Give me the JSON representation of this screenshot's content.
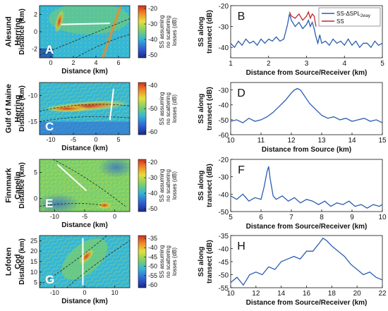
{
  "colors": {
    "blue_line": "#2a5db0",
    "red_line": "#c0262b",
    "transect": "#ffffff",
    "contour": "#222222",
    "colormap": [
      "#1b2a8c",
      "#2f63d6",
      "#35b7d6",
      "#7ccf6a",
      "#e3e03a",
      "#f28a24",
      "#d1301e"
    ]
  },
  "rows": [
    {
      "id": "A",
      "region": [
        "Alesund",
        "Herring"
      ],
      "map": {
        "letter": "A",
        "xlabel": "Distance (km)",
        "ylabel": "Distance (km)",
        "xticks": [
          "0",
          "2",
          "4",
          "6"
        ],
        "yticks": [
          "2",
          "0",
          "-2"
        ],
        "colorbar": {
          "ticks": [
            "-20",
            "-30",
            "-40",
            "-50"
          ],
          "label": [
            "SS assuming",
            "no scattering",
            "losses (dB)"
          ]
        }
      },
      "chart_data": {
        "type": "line",
        "panel": "B",
        "xlabel": "Distance from Source/Receiver (km)",
        "ylabel": [
          "SS along",
          "transect (dB)"
        ],
        "xlim": [
          1,
          5
        ],
        "ylim": [
          -45,
          -20
        ],
        "xticks": [
          1,
          2,
          3,
          4,
          5
        ],
        "yticks": [
          -20,
          -30,
          -40
        ],
        "legend": {
          "position": "top-right",
          "entries": [
            "SS-ΔSPL",
            "SS"
          ],
          "subscript": "2way"
        },
        "series": [
          {
            "name": "SS-ΔSPL2way",
            "x": [
              1.0,
              1.1,
              1.2,
              1.3,
              1.4,
              1.5,
              1.6,
              1.7,
              1.8,
              1.9,
              2.0,
              2.1,
              2.2,
              2.3,
              2.4,
              2.5,
              2.55,
              2.6,
              2.7,
              2.8,
              2.9,
              3.0,
              3.05,
              3.1,
              3.15,
              3.2,
              3.25,
              3.3,
              3.35,
              3.4,
              3.5,
              3.6,
              3.7,
              3.8,
              3.9,
              4.0,
              4.1,
              4.2,
              4.3,
              4.4,
              4.5,
              4.6,
              4.7,
              4.8,
              4.9,
              5.0
            ],
            "y": [
              -38,
              -40,
              -37,
              -39,
              -36,
              -38,
              -37,
              -39,
              -36,
              -38,
              -36,
              -37,
              -35,
              -37,
              -36,
              -29,
              -24,
              -27,
              -30,
              -28,
              -31,
              -29,
              -27,
              -30,
              -28,
              -31,
              -35,
              -38,
              -34,
              -38,
              -37,
              -39,
              -36,
              -38,
              -37,
              -39,
              -36,
              -39,
              -37,
              -40,
              -38,
              -38,
              -40,
              -37,
              -39,
              -38
            ]
          },
          {
            "name": "SS",
            "x": [
              2.55,
              2.6,
              2.7,
              2.8,
              2.9,
              3.0,
              3.05,
              3.1,
              3.15,
              3.2,
              3.25
            ],
            "y": [
              -23,
              -25,
              -26,
              -24,
              -27,
              -25,
              -23,
              -26,
              -24,
              -25,
              -30
            ]
          }
        ]
      }
    },
    {
      "id": "C",
      "region": [
        "Gulf of Maine",
        "Herring"
      ],
      "map": {
        "letter": "C",
        "xlabel": "Distance (km)",
        "ylabel": "Distance (km)",
        "xticks": [
          "-10",
          "-5",
          "0",
          "5"
        ],
        "yticks": [
          "-10",
          "-15"
        ],
        "colorbar": {
          "ticks": [
            "-40",
            "-50",
            "-60"
          ],
          "label": [
            "SS assuming",
            "no scattering",
            "losses (dB)"
          ]
        }
      },
      "chart_data": {
        "type": "line",
        "panel": "D",
        "xlabel": "Distance from Source (km)",
        "ylabel": [
          "SS along",
          "transect (dB)"
        ],
        "xlim": [
          10,
          15
        ],
        "ylim": [
          -60,
          -25
        ],
        "xticks": [
          10,
          11,
          12,
          13,
          14,
          15
        ],
        "yticks": [
          -30,
          -40,
          -50,
          -60
        ],
        "series": [
          {
            "name": "",
            "x": [
              10.0,
              10.2,
              10.4,
              10.6,
              10.8,
              11.0,
              11.2,
              11.4,
              11.6,
              11.8,
              12.0,
              12.1,
              12.2,
              12.3,
              12.4,
              12.5,
              12.6,
              12.8,
              13.0,
              13.2,
              13.4,
              13.6,
              13.8,
              14.0,
              14.2,
              14.4,
              14.6,
              14.8,
              15.0
            ],
            "y": [
              -51,
              -50,
              -52,
              -49,
              -51,
              -50,
              -48,
              -45,
              -41,
              -37,
              -32,
              -30,
              -29,
              -30,
              -33,
              -36,
              -39,
              -43,
              -47,
              -49,
              -48,
              -50,
              -49,
              -51,
              -50,
              -49,
              -51,
              -50,
              -52
            ]
          }
        ]
      }
    },
    {
      "id": "E",
      "region": [
        "Finnmark",
        "Capelin"
      ],
      "map": {
        "letter": "E",
        "xlabel": "Distance (km)",
        "ylabel": "Distance (km)",
        "xticks": [
          "-10",
          "-5",
          "0"
        ],
        "yticks": [
          "5",
          "0"
        ],
        "colorbar": {
          "ticks": [
            "-20",
            "-30",
            "-40",
            "-50"
          ],
          "label": [
            "SS assuming",
            "no scattering",
            "losses (dB)"
          ]
        }
      },
      "chart_data": {
        "type": "line",
        "panel": "F",
        "xlabel": "Distance from Source/Receiver (km)",
        "ylabel": [
          "SS along",
          "transect (dB)"
        ],
        "xlim": [
          5,
          10
        ],
        "ylim": [
          -50,
          -20
        ],
        "xticks": [
          5,
          6,
          7,
          8,
          9,
          10
        ],
        "yticks": [
          -20,
          -30,
          -40,
          -50
        ],
        "series": [
          {
            "name": "",
            "x": [
              5.0,
              5.2,
              5.4,
              5.6,
              5.8,
              6.0,
              6.1,
              6.2,
              6.25,
              6.3,
              6.4,
              6.5,
              6.7,
              6.9,
              7.1,
              7.3,
              7.5,
              7.7,
              7.9,
              8.1,
              8.3,
              8.5,
              8.7,
              8.9,
              9.1,
              9.3,
              9.5,
              9.7,
              9.9,
              10.0
            ],
            "y": [
              -41,
              -43,
              -40,
              -44,
              -42,
              -43,
              -36,
              -27,
              -24,
              -31,
              -41,
              -43,
              -41,
              -44,
              -42,
              -45,
              -43,
              -44,
              -46,
              -44,
              -47,
              -45,
              -46,
              -44,
              -47,
              -46,
              -48,
              -46,
              -47,
              -46
            ]
          }
        ]
      }
    },
    {
      "id": "G",
      "region": [
        "Lofoten",
        "Cod"
      ],
      "map": {
        "letter": "G",
        "xlabel": "Distance (km)",
        "ylabel": "Distance (km)",
        "xticks": [
          "-10",
          "0",
          "10"
        ],
        "yticks": [
          "25",
          "20",
          "15",
          "10",
          "5"
        ],
        "colorbar": {
          "ticks": [
            "-35",
            "-40",
            "-45",
            "-50",
            "-55",
            "-60"
          ],
          "label": [
            "SS assuming",
            "no scattering",
            "losses (dB)"
          ]
        }
      },
      "chart_data": {
        "type": "line",
        "panel": "H",
        "xlabel": "Distance from Source/Receiver (km)",
        "ylabel": [
          "SS along",
          "transect (dB)"
        ],
        "xlim": [
          10,
          22
        ],
        "ylim": [
          -55,
          -35
        ],
        "xticks": [
          10,
          12,
          14,
          16,
          18,
          20,
          22
        ],
        "yticks": [
          -35,
          -40,
          -45,
          -50,
          -55
        ],
        "series": [
          {
            "name": "",
            "x": [
              10.0,
              10.5,
              11.0,
              11.5,
              12.0,
              12.5,
              13.0,
              13.5,
              14.0,
              14.5,
              15.0,
              15.5,
              16.0,
              16.5,
              17.0,
              17.3,
              17.6,
              18.0,
              18.5,
              19.0,
              19.5,
              20.0,
              20.5,
              21.0,
              21.5,
              22.0
            ],
            "y": [
              -53,
              -51,
              -54,
              -50,
              -49,
              -50,
              -47,
              -48,
              -45,
              -44,
              -43,
              -44,
              -41,
              -41,
              -38,
              -36,
              -37,
              -39,
              -41,
              -43,
              -46,
              -48,
              -50,
              -49,
              -51,
              -52
            ]
          }
        ]
      }
    }
  ]
}
